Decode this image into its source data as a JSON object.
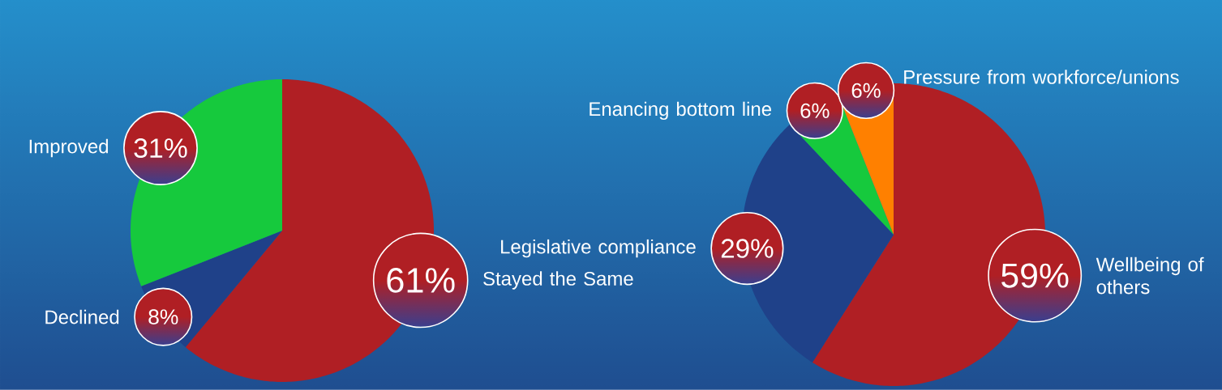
{
  "chart_data": [
    {
      "type": "pie",
      "categories": [
        "Stayed the Same",
        "Declined",
        "Improved"
      ],
      "values": [
        61,
        8,
        31
      ],
      "colors": [
        "#b01f24",
        "#1f4189",
        "#16c93d"
      ],
      "value_labels": [
        "61%",
        "8%",
        "31%"
      ]
    },
    {
      "type": "pie",
      "categories": [
        "Wellbeing of others",
        "Legislative compliance",
        "Enancing bottom line",
        "Pressure from workforce/unions"
      ],
      "values": [
        59,
        29,
        6,
        6
      ],
      "colors": [
        "#b01f24",
        "#1f4189",
        "#16c93d",
        "#ff8000"
      ],
      "value_labels": [
        "59%",
        "29%",
        "6%",
        "6%"
      ]
    }
  ]
}
